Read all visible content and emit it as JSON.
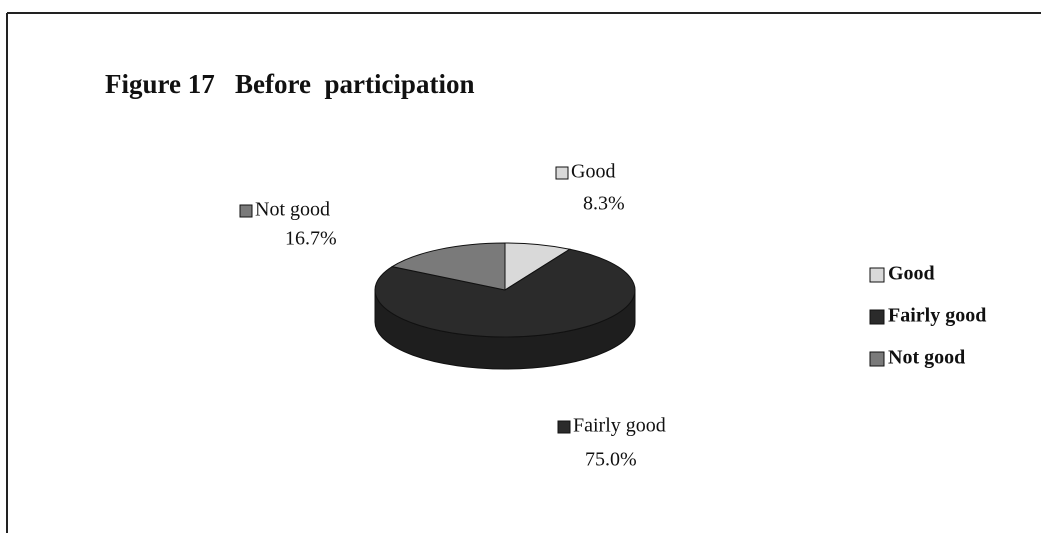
{
  "chart_data": {
    "type": "pie",
    "title": "Figure 17   Before  participation",
    "categories": [
      "Good",
      "Fairly good",
      "Not good"
    ],
    "values": [
      8.3,
      75.0,
      16.7
    ],
    "value_labels": [
      "8.3%",
      "75.0%",
      "16.7%"
    ],
    "colors": [
      "#d9d9d9",
      "#2b2b2b",
      "#7a7a7a"
    ],
    "legend": "right"
  }
}
